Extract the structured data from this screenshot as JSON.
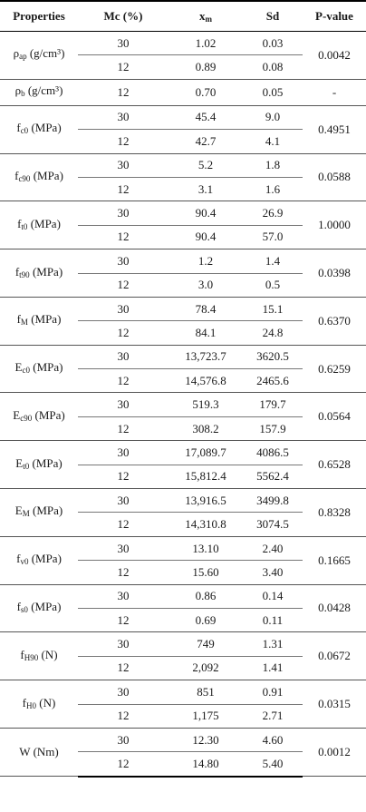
{
  "headers": [
    "Properties",
    "Mc (%)",
    "xm",
    "Sd",
    "P-value"
  ],
  "rows": [
    {
      "prop": "ρap (g/cm³)",
      "mc": [
        "30",
        "12"
      ],
      "xm": [
        "1.02",
        "0.89"
      ],
      "sd": [
        "0.03",
        "0.08"
      ],
      "p": "0.0042"
    },
    {
      "prop": "ρb (g/cm³)",
      "mc": [
        "12"
      ],
      "xm": [
        "0.70"
      ],
      "sd": [
        "0.05"
      ],
      "p": "-"
    },
    {
      "prop": "fc0 (MPa)",
      "mc": [
        "30",
        "12"
      ],
      "xm": [
        "45.4",
        "42.7"
      ],
      "sd": [
        "9.0",
        "4.1"
      ],
      "p": "0.4951"
    },
    {
      "prop": "fc90 (MPa)",
      "mc": [
        "30",
        "12"
      ],
      "xm": [
        "5.2",
        "3.1"
      ],
      "sd": [
        "1.8",
        "1.6"
      ],
      "p": "0.0588"
    },
    {
      "prop": "ft0 (MPa)",
      "mc": [
        "30",
        "12"
      ],
      "xm": [
        "90.4",
        "90.4"
      ],
      "sd": [
        "26.9",
        "57.0"
      ],
      "p": "1.0000"
    },
    {
      "prop": "ft90 (MPa)",
      "mc": [
        "30",
        "12"
      ],
      "xm": [
        "1.2",
        "3.0"
      ],
      "sd": [
        "1.4",
        "0.5"
      ],
      "p": "0.0398"
    },
    {
      "prop": "fM (MPa)",
      "mc": [
        "30",
        "12"
      ],
      "xm": [
        "78.4",
        "84.1"
      ],
      "sd": [
        "15.1",
        "24.8"
      ],
      "p": "0.6370"
    },
    {
      "prop": "Ec0 (MPa)",
      "mc": [
        "30",
        "12"
      ],
      "xm": [
        "13,723.7",
        "14,576.8"
      ],
      "sd": [
        "3620.5",
        "2465.6"
      ],
      "p": "0.6259"
    },
    {
      "prop": "Ec90 (MPa)",
      "mc": [
        "30",
        "12"
      ],
      "xm": [
        "519.3",
        "308.2"
      ],
      "sd": [
        "179.7",
        "157.9"
      ],
      "p": "0.0564"
    },
    {
      "prop": "Et0 (MPa)",
      "mc": [
        "30",
        "12"
      ],
      "xm": [
        "17,089.7",
        "15,812.4"
      ],
      "sd": [
        "4086.5",
        "5562.4"
      ],
      "p": "0.6528"
    },
    {
      "prop": "EM (MPa)",
      "mc": [
        "30",
        "12"
      ],
      "xm": [
        "13,916.5",
        "14,310.8"
      ],
      "sd": [
        "3499.8",
        "3074.5"
      ],
      "p": "0.8328"
    },
    {
      "prop": "fv0 (MPa)",
      "mc": [
        "30",
        "12"
      ],
      "xm": [
        "13.10",
        "15.60"
      ],
      "sd": [
        "2.40",
        "3.40"
      ],
      "p": "0.1665"
    },
    {
      "prop": "fs0 (MPa)",
      "mc": [
        "30",
        "12"
      ],
      "xm": [
        "0.86",
        "0.69"
      ],
      "sd": [
        "0.14",
        "0.11"
      ],
      "p": "0.0428"
    },
    {
      "prop": "fH90 (N)",
      "mc": [
        "30",
        "12"
      ],
      "xm": [
        "749",
        "2,092"
      ],
      "sd": [
        "1.31",
        "1.41"
      ],
      "p": "0.0672"
    },
    {
      "prop": "fH0 (N)",
      "mc": [
        "30",
        "12"
      ],
      "xm": [
        "851",
        "1,175"
      ],
      "sd": [
        "0.91",
        "2.71"
      ],
      "p": "0.0315"
    },
    {
      "prop": "W (Nm)",
      "mc": [
        "30",
        "12"
      ],
      "xm": [
        "12.30",
        "14.80"
      ],
      "sd": [
        "4.60",
        "5.40"
      ],
      "p": "0.0012"
    }
  ]
}
